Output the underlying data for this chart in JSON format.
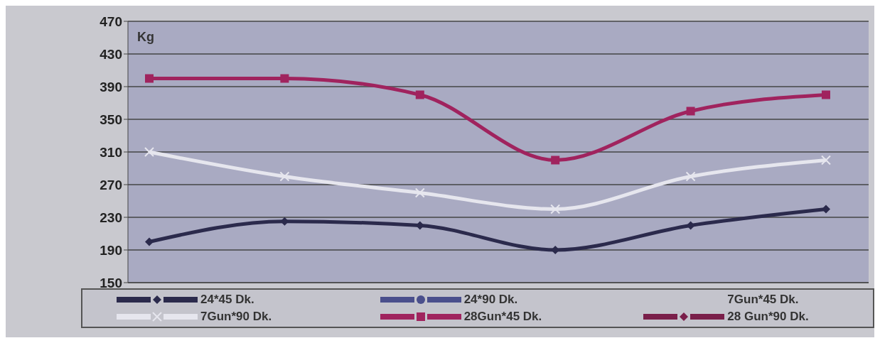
{
  "chart_data": {
    "type": "line",
    "ylabel": "Kg",
    "categories": [
      null,
      null,
      null,
      null,
      null,
      null
    ],
    "ylim": [
      150,
      470
    ],
    "yticks": [
      150,
      190,
      230,
      270,
      310,
      350,
      390,
      430,
      470
    ],
    "grid": "y",
    "legend": "bottom",
    "line_style": "solid",
    "series": [
      {
        "name": "24*45 Dk.",
        "color": "#2b2a4c",
        "marker": "diamond",
        "values": [
          200,
          225,
          220,
          190,
          220,
          240
        ]
      },
      {
        "name": "24*90 Dk.",
        "color": "#4a4f8c",
        "marker": "circle",
        "values": [
          null,
          null,
          null,
          null,
          null,
          null
        ]
      },
      {
        "name": "7Gun*45 Dk.",
        "marker": "none",
        "values": [
          null,
          null,
          null,
          null,
          null,
          null
        ]
      },
      {
        "name": "7Gun*90 Dk.",
        "color": "#e6e6ee",
        "marker": "cross",
        "values": [
          310,
          280,
          260,
          240,
          280,
          300
        ]
      },
      {
        "name": "28Gun*45 Dk.",
        "color": "#a0235e",
        "marker": "square",
        "values": [
          400,
          400,
          380,
          300,
          360,
          380
        ]
      },
      {
        "name": "28 Gun*90 Dk.",
        "color": "#7a1f4a",
        "marker": "diamond",
        "values": [
          null,
          null,
          null,
          null,
          null,
          null
        ]
      }
    ]
  }
}
